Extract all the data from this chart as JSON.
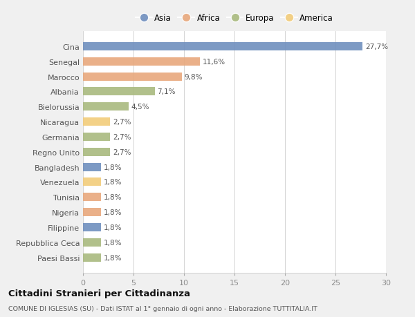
{
  "countries": [
    "Cina",
    "Senegal",
    "Marocco",
    "Albania",
    "Bielorussia",
    "Nicaragua",
    "Germania",
    "Regno Unito",
    "Bangladesh",
    "Venezuela",
    "Tunisia",
    "Nigeria",
    "Filippine",
    "Repubblica Ceca",
    "Paesi Bassi"
  ],
  "values": [
    27.7,
    11.6,
    9.8,
    7.1,
    4.5,
    2.7,
    2.7,
    2.7,
    1.8,
    1.8,
    1.8,
    1.8,
    1.8,
    1.8,
    1.8
  ],
  "labels": [
    "27,7%",
    "11,6%",
    "9,8%",
    "7,1%",
    "4,5%",
    "2,7%",
    "2,7%",
    "2,7%",
    "1,8%",
    "1,8%",
    "1,8%",
    "1,8%",
    "1,8%",
    "1,8%",
    "1,8%"
  ],
  "continents": [
    "Asia",
    "Africa",
    "Africa",
    "Europa",
    "Europa",
    "America",
    "Europa",
    "Europa",
    "Asia",
    "America",
    "Africa",
    "Africa",
    "Asia",
    "Europa",
    "Europa"
  ],
  "colors": {
    "Asia": "#6f8fbe",
    "Africa": "#e8a87c",
    "Europa": "#a9ba7e",
    "America": "#f2cc7a"
  },
  "title": "Cittadini Stranieri per Cittadinanza",
  "subtitle": "COMUNE DI IGLESIAS (SU) - Dati ISTAT al 1° gennaio di ogni anno - Elaborazione TUTTITALIA.IT",
  "xlim": [
    0,
    30
  ],
  "xticks": [
    0,
    5,
    10,
    15,
    20,
    25,
    30
  ],
  "background_color": "#f0f0f0",
  "plot_background": "#ffffff"
}
